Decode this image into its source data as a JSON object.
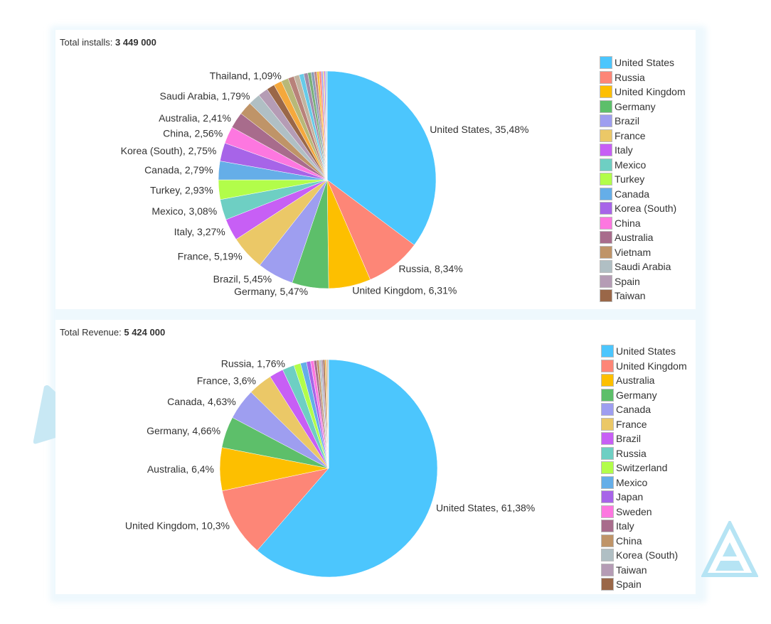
{
  "chart_data": [
    {
      "type": "pie",
      "title_label": "Total installs:",
      "title_value": "3 449 000",
      "start": "top",
      "direction": "clockwise",
      "slices": [
        {
          "name": "United States",
          "value": 35.48,
          "color": "#4cc6fd",
          "label": "United States, 35,48%"
        },
        {
          "name": "Russia",
          "value": 8.34,
          "color": "#fd8677",
          "label": "Russia, 8,34%"
        },
        {
          "name": "United Kingdom",
          "value": 6.31,
          "color": "#fdbf00",
          "label": "United Kingdom, 6,31%"
        },
        {
          "name": "Germany",
          "value": 5.47,
          "color": "#5dbf6a",
          "label": "Germany, 5,47%"
        },
        {
          "name": "Brazil",
          "value": 5.45,
          "color": "#9e9ef0",
          "label": "Brazil, 5,45%"
        },
        {
          "name": "France",
          "value": 5.19,
          "color": "#ebc867",
          "label": "France, 5,19%"
        },
        {
          "name": "Italy",
          "value": 3.27,
          "color": "#c75ff5",
          "label": "Italy, 3,27%"
        },
        {
          "name": "Mexico",
          "value": 3.08,
          "color": "#6ecfc3",
          "label": "Mexico, 3,08%"
        },
        {
          "name": "Turkey",
          "value": 2.93,
          "color": "#b2fd4a",
          "label": "Turkey, 2,93%"
        },
        {
          "name": "Canada",
          "value": 2.79,
          "color": "#65aee8",
          "label": "Canada, 2,79%"
        },
        {
          "name": "Korea (South)",
          "value": 2.75,
          "color": "#a764e8",
          "label": "Korea (South), 2,75%"
        },
        {
          "name": "China",
          "value": 2.56,
          "color": "#fd77e0",
          "label": "China, 2,56%"
        },
        {
          "name": "Australia",
          "value": 2.41,
          "color": "#a86c8c",
          "label": "Australia, 2,41%"
        },
        {
          "name": "Vietnam",
          "value": 2.0,
          "color": "#bf9468"
        },
        {
          "name": "Saudi Arabia",
          "value": 1.79,
          "color": "#b0bfc4",
          "label": "Saudi Arabia, 1,79%"
        },
        {
          "name": "Spain",
          "value": 1.5,
          "color": "#b59cb5"
        },
        {
          "name": "Taiwan",
          "value": 1.2,
          "color": "#9a6748"
        },
        {
          "value": 1.2,
          "color": "#f5a83c"
        },
        {
          "name": "Thailand",
          "value": 1.09,
          "color": "#b8b878",
          "label": "Thailand, 1,09%"
        },
        {
          "value": 0.9,
          "color": "#b8827a"
        },
        {
          "value": 0.8,
          "color": "#c2b4a0"
        },
        {
          "value": 0.7,
          "color": "#66cbe8"
        },
        {
          "value": 0.6,
          "color": "#a08ca8"
        },
        {
          "value": 0.5,
          "color": "#7ab07a"
        },
        {
          "value": 0.45,
          "color": "#8c9cb8"
        },
        {
          "value": 0.4,
          "color": "#c08888"
        },
        {
          "value": 0.35,
          "color": "#f5c040"
        },
        {
          "value": 0.3,
          "color": "#fd8677"
        },
        {
          "value": 0.25,
          "color": "#9e9ef0"
        },
        {
          "value": 0.2,
          "color": "#ebc867"
        },
        {
          "value": 0.18,
          "color": "#c75ff5"
        },
        {
          "value": 0.15,
          "color": "#6ecfc3"
        },
        {
          "value": 0.11,
          "color": "#b0bfc4"
        }
      ],
      "legend": [
        "United States",
        "Russia",
        "United Kingdom",
        "Germany",
        "Brazil",
        "France",
        "Italy",
        "Mexico",
        "Turkey",
        "Canada",
        "Korea (South)",
        "China",
        "Australia",
        "Vietnam",
        "Saudi Arabia",
        "Spain",
        "Taiwan"
      ],
      "legend_position": "right"
    },
    {
      "type": "pie",
      "title_label": "Total Revenue:",
      "title_value": "5 424 000",
      "start": "top",
      "direction": "clockwise",
      "slices": [
        {
          "name": "United States",
          "value": 61.38,
          "color": "#4cc6fd",
          "label": "United States, 61,38%"
        },
        {
          "name": "United Kingdom",
          "value": 10.3,
          "color": "#fd8677",
          "label": "United Kingdom, 10,3%"
        },
        {
          "name": "Australia",
          "value": 6.4,
          "color": "#fdbf00",
          "label": "Australia, 6,4%"
        },
        {
          "name": "Germany",
          "value": 4.66,
          "color": "#5dbf6a",
          "label": "Germany, 4,66%"
        },
        {
          "name": "Canada",
          "value": 4.63,
          "color": "#9e9ef0",
          "label": "Canada, 4,63%"
        },
        {
          "name": "France",
          "value": 3.6,
          "color": "#ebc867",
          "label": "France, 3,6%"
        },
        {
          "name": "Brazil",
          "value": 2.1,
          "color": "#c75ff5"
        },
        {
          "name": "Russia",
          "value": 1.76,
          "color": "#6ecfc3",
          "label": "Russia, 1,76%"
        },
        {
          "name": "Switzerland",
          "value": 1.0,
          "color": "#b2fd4a"
        },
        {
          "name": "Mexico",
          "value": 0.9,
          "color": "#65aee8"
        },
        {
          "name": "Japan",
          "value": 0.6,
          "color": "#a764e8"
        },
        {
          "name": "Sweden",
          "value": 0.5,
          "color": "#fd77e0"
        },
        {
          "name": "Italy",
          "value": 0.4,
          "color": "#a86c8c"
        },
        {
          "name": "China",
          "value": 0.35,
          "color": "#bf9468"
        },
        {
          "name": "Korea (South)",
          "value": 0.3,
          "color": "#b0bfc4"
        },
        {
          "name": "Taiwan",
          "value": 0.3,
          "color": "#b59cb5"
        },
        {
          "name": "Spain",
          "value": 0.25,
          "color": "#9a6748"
        },
        {
          "value": 0.2,
          "color": "#f5a83c"
        },
        {
          "value": 0.15,
          "color": "#b8b878"
        },
        {
          "value": 0.12,
          "color": "#b8827a"
        },
        {
          "value": 0.1,
          "color": "#c2b4a0"
        }
      ],
      "legend": [
        "United States",
        "United Kingdom",
        "Australia",
        "Germany",
        "Canada",
        "France",
        "Brazil",
        "Russia",
        "Switzerland",
        "Mexico",
        "Japan",
        "Sweden",
        "Italy",
        "China",
        "Korea (South)",
        "Taiwan",
        "Spain"
      ],
      "legend_position": "right"
    }
  ],
  "decor_color": "#bfe6f5"
}
